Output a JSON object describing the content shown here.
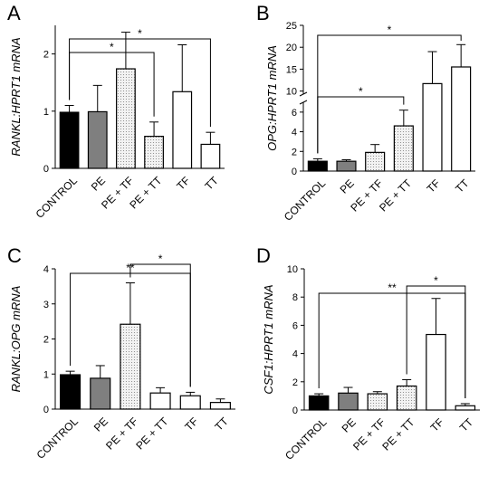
{
  "chart_data": [
    {
      "panel": "A",
      "type": "bar",
      "ylabel": "RANKL:HPRT1 mRNA",
      "categories": [
        "CONTROL",
        "PE",
        "PE + TF",
        "PE + TT",
        "TF",
        "TT"
      ],
      "values": [
        0.98,
        0.99,
        1.74,
        0.56,
        1.34,
        0.42
      ],
      "errors": [
        0.12,
        0.46,
        0.64,
        0.25,
        0.82,
        0.21
      ],
      "ylim": [
        0,
        2.5
      ],
      "yticks": [
        "0",
        "1",
        "2"
      ],
      "fills": [
        "black",
        "gray",
        "dots",
        "dots",
        "white",
        "white"
      ],
      "significance": [
        {
          "from": "CONTROL",
          "to": "PE + TT",
          "label": "*"
        },
        {
          "from": "CONTROL",
          "to": "TT",
          "label": "*"
        }
      ]
    },
    {
      "panel": "B",
      "type": "bar",
      "ylabel": "OPG:HPRT1 mRNA",
      "categories": [
        "CONTROL",
        "PE",
        "PE + TF",
        "PE + TT",
        "TF",
        "TT"
      ],
      "values": [
        1.0,
        1.0,
        1.9,
        4.6,
        11.7,
        15.5
      ],
      "errors": [
        0.25,
        0.15,
        0.8,
        1.6,
        7.3,
        5.1
      ],
      "ylim": [
        0,
        25
      ],
      "axis_break": [
        7,
        9.3
      ],
      "yticks": [
        "0",
        "2",
        "4",
        "6",
        "10",
        "15",
        "20",
        "25"
      ],
      "fills": [
        "black",
        "gray",
        "dots",
        "dots",
        "white",
        "white"
      ],
      "significance": [
        {
          "from": "CONTROL",
          "to": "PE + TT",
          "label": "*"
        },
        {
          "from": "CONTROL",
          "to": "TT",
          "label": "*"
        }
      ]
    },
    {
      "panel": "C",
      "type": "bar",
      "ylabel": "RANKL:OPG mRNA",
      "categories": [
        "CONTROL",
        "PE",
        "PE + TF",
        "PE + TT",
        "TF",
        "TT"
      ],
      "values": [
        0.98,
        0.88,
        2.42,
        0.46,
        0.38,
        0.19
      ],
      "errors": [
        0.1,
        0.36,
        1.18,
        0.15,
        0.1,
        0.1
      ],
      "ylim": [
        0,
        4
      ],
      "yticks": [
        "0",
        "1",
        "2",
        "3",
        "4"
      ],
      "fills": [
        "black",
        "gray",
        "dots",
        "white",
        "white",
        "white"
      ],
      "significance": [
        {
          "from": "PE + TF",
          "to": "TF",
          "label": "*"
        },
        {
          "from": "CONTROL",
          "to": "TF",
          "label": "**"
        }
      ]
    },
    {
      "panel": "D",
      "type": "bar",
      "ylabel": "CSF1:HPRT1 mRNA",
      "categories": [
        "CONTROL",
        "PE",
        "PE + TF",
        "PE + TT",
        "TF",
        "TT"
      ],
      "values": [
        1.0,
        1.2,
        1.15,
        1.7,
        5.35,
        0.3
      ],
      "errors": [
        0.15,
        0.4,
        0.15,
        0.45,
        2.55,
        0.15
      ],
      "ylim": [
        0,
        10
      ],
      "yticks": [
        "0",
        "2",
        "4",
        "6",
        "8",
        "10"
      ],
      "fills": [
        "black",
        "gray",
        "dots",
        "dots",
        "white",
        "white"
      ],
      "significance": [
        {
          "from": "PE + TT",
          "to": "TT",
          "label": "*"
        },
        {
          "from": "CONTROL",
          "to": "TT",
          "label": "**"
        }
      ]
    }
  ]
}
